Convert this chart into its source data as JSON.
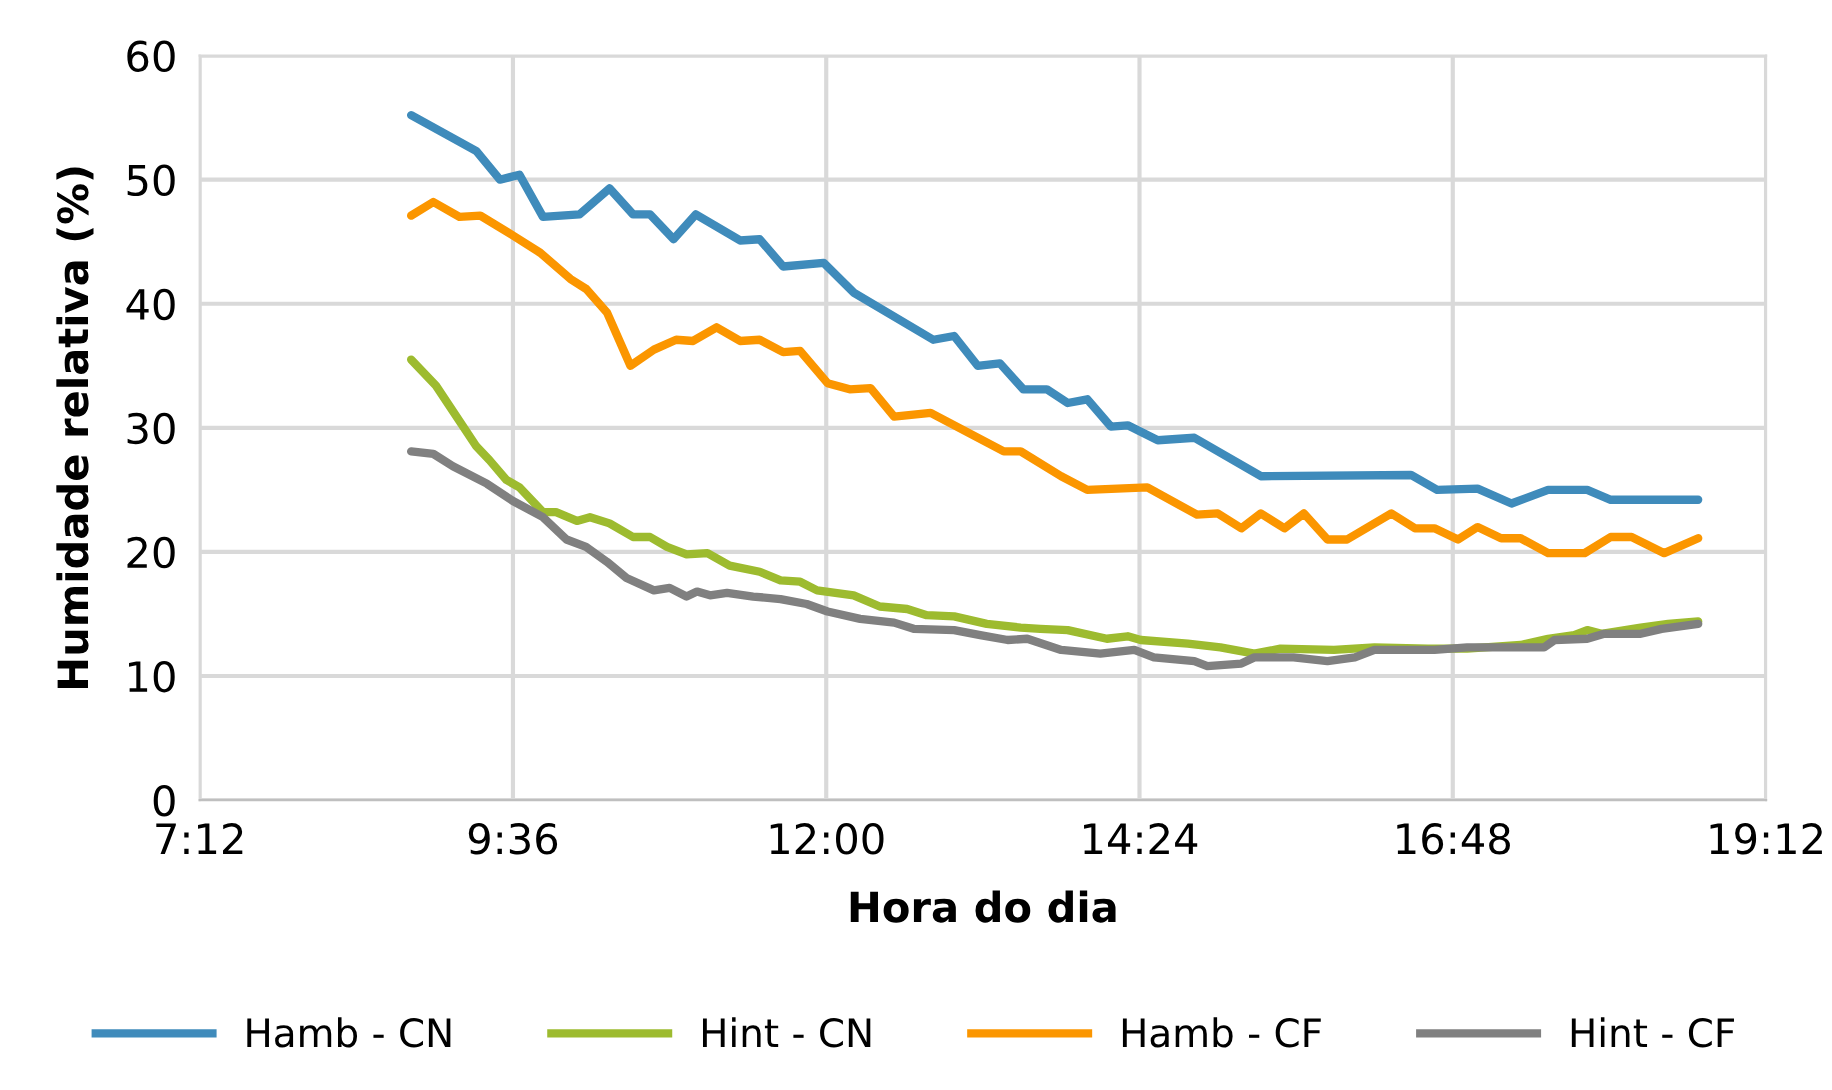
{
  "chart_data": {
    "type": "line",
    "xlabel": "Hora do dia",
    "ylabel": "Humidade relativa (%)",
    "xlim": [
      7.2,
      19.2
    ],
    "xticks": [
      {
        "value": 7.2,
        "label": "7:12"
      },
      {
        "value": 9.6,
        "label": "9:36"
      },
      {
        "value": 12,
        "label": "12:00"
      },
      {
        "value": 14.4,
        "label": "14:24"
      },
      {
        "value": 16.8,
        "label": "16:48"
      },
      {
        "value": 19.2,
        "label": "19:12"
      }
    ],
    "ylim": [
      0,
      60
    ],
    "yticks": [
      0,
      10,
      20,
      30,
      40,
      50,
      60
    ],
    "grid": true,
    "legend": "bottom",
    "marker": "none",
    "line_style": "solid",
    "series": [
      {
        "name": "Hamb - CN",
        "color": "#3f8bbb",
        "x": [
          8.82,
          9.32,
          9.5,
          9.65,
          9.83,
          10.11,
          10.34,
          10.52,
          10.65,
          10.83,
          11.0,
          11.34,
          11.49,
          11.67,
          11.98,
          12.21,
          12.82,
          12.98,
          13.16,
          13.33,
          13.51,
          13.69,
          13.85,
          14.0,
          14.18,
          14.31,
          14.54,
          14.82,
          15.33,
          16.48,
          16.68,
          16.99,
          17.25,
          17.53,
          17.83,
          18.01,
          18.68
        ],
        "values": [
          55.2,
          52.3,
          50,
          50.4,
          47,
          47.2,
          49.3,
          47.2,
          47.2,
          45.2,
          47.2,
          45.1,
          45.2,
          43,
          43.3,
          40.9,
          37.1,
          37.4,
          35,
          35.2,
          33.1,
          33.1,
          32,
          32.3,
          30.1,
          30.2,
          29,
          29.2,
          26.1,
          26.2,
          25,
          25.1,
          23.9,
          25,
          25,
          24.2,
          24.2
        ]
      },
      {
        "name": "Hint - CN",
        "color": "#9dbb2f",
        "x": [
          8.82,
          9.01,
          9.32,
          9.42,
          9.55,
          9.65,
          9.83,
          9.93,
          10.09,
          10.19,
          10.34,
          10.52,
          10.65,
          10.78,
          10.93,
          11.09,
          11.26,
          11.49,
          11.65,
          11.8,
          11.93,
          12.21,
          12.41,
          12.62,
          12.77,
          12.98,
          13.23,
          13.49,
          13.64,
          13.85,
          14.15,
          14.31,
          14.41,
          14.77,
          15.02,
          15.28,
          15.48,
          15.89,
          16.2,
          16.61,
          16.91,
          17.32,
          17.53,
          17.73,
          17.83,
          17.94,
          18.24,
          18.45,
          18.68
        ],
        "values": [
          35.5,
          33.4,
          28.5,
          27.4,
          25.8,
          25.2,
          23.2,
          23.2,
          22.5,
          22.8,
          22.3,
          21.2,
          21.2,
          20.4,
          19.8,
          19.9,
          18.9,
          18.4,
          17.7,
          17.6,
          16.9,
          16.5,
          15.6,
          15.4,
          14.9,
          14.8,
          14.2,
          13.9,
          13.8,
          13.7,
          13,
          13.2,
          12.9,
          12.6,
          12.3,
          11.8,
          12.2,
          12.1,
          12.3,
          12.2,
          12.2,
          12.5,
          13,
          13.3,
          13.7,
          13.4,
          13.9,
          14.2,
          14.4
        ]
      },
      {
        "name": "Hamb - CF",
        "color": "#fb9600",
        "x": [
          8.82,
          8.99,
          9.19,
          9.35,
          9.6,
          9.81,
          10.04,
          10.16,
          10.32,
          10.5,
          10.68,
          10.85,
          10.98,
          11.16,
          11.34,
          11.49,
          11.67,
          11.8,
          12.01,
          12.18,
          12.34,
          12.52,
          12.8,
          13.36,
          13.49,
          13.8,
          14.0,
          14.46,
          14.84,
          15.0,
          15.18,
          15.33,
          15.51,
          15.66,
          15.84,
          15.99,
          16.33,
          16.51,
          16.66,
          16.84,
          16.99,
          17.17,
          17.32,
          17.53,
          17.81,
          18.01,
          18.17,
          18.42,
          18.68
        ],
        "values": [
          47.1,
          48.2,
          47,
          47.1,
          45.5,
          44.1,
          42,
          41.2,
          39.3,
          35,
          36.3,
          37.1,
          37,
          38.1,
          37,
          37.1,
          36.1,
          36.2,
          33.6,
          33.1,
          33.2,
          30.9,
          31.2,
          28.1,
          28.1,
          26.1,
          25,
          25.2,
          23,
          23.1,
          21.9,
          23.1,
          21.9,
          23.1,
          21,
          21,
          23.1,
          21.9,
          21.9,
          21,
          22,
          21.1,
          21.1,
          19.9,
          19.9,
          21.2,
          21.2,
          19.9,
          21.1
        ]
      },
      {
        "name": "Hint - CF",
        "color": "#808080",
        "x": [
          8.82,
          8.99,
          9.14,
          9.4,
          9.6,
          9.83,
          10.01,
          10.16,
          10.32,
          10.47,
          10.68,
          10.8,
          10.93,
          11.01,
          11.11,
          11.24,
          11.44,
          11.65,
          11.85,
          12.01,
          12.26,
          12.52,
          12.67,
          12.98,
          13.18,
          13.39,
          13.54,
          13.8,
          14.1,
          14.36,
          14.51,
          14.82,
          14.92,
          15.18,
          15.28,
          15.58,
          15.84,
          16.05,
          16.2,
          16.66,
          16.91,
          17.32,
          17.5,
          17.58,
          17.83,
          17.96,
          18.24,
          18.4,
          18.68
        ],
        "values": [
          28.1,
          27.9,
          26.9,
          25.5,
          24.1,
          22.8,
          21,
          20.4,
          19.2,
          17.9,
          16.9,
          17.1,
          16.4,
          16.8,
          16.5,
          16.7,
          16.4,
          16.2,
          15.8,
          15.2,
          14.6,
          14.3,
          13.8,
          13.7,
          13.3,
          12.9,
          13,
          12.1,
          11.8,
          12.1,
          11.5,
          11.2,
          10.8,
          11,
          11.5,
          11.5,
          11.2,
          11.5,
          12.1,
          12.1,
          12.3,
          12.3,
          12.3,
          12.9,
          13,
          13.4,
          13.4,
          13.8,
          14.2
        ]
      }
    ]
  }
}
